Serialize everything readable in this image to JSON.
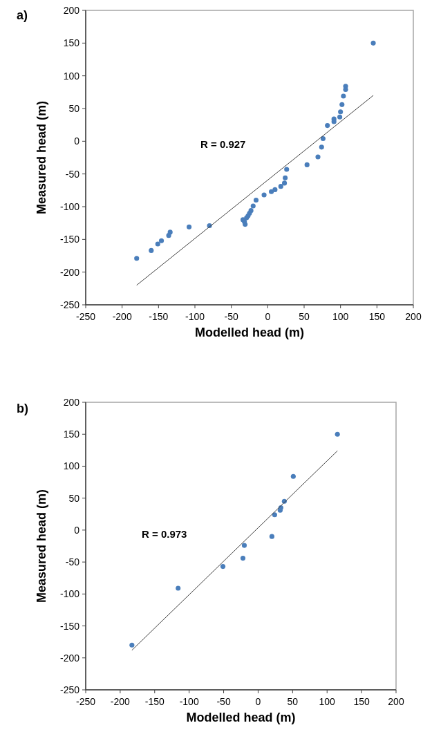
{
  "chart_data": [
    {
      "type": "scatter",
      "title": "a)",
      "xlabel": "Modelled head (m)",
      "ylabel": "Measured head (m)",
      "annotations": [
        "R = 0.927"
      ],
      "xlim": [
        -250,
        200
      ],
      "ylim": [
        -250,
        200
      ],
      "xticks": [
        -250,
        -200,
        -150,
        -100,
        -50,
        0,
        50,
        100,
        150,
        200
      ],
      "yticks": [
        -250,
        -200,
        -150,
        -100,
        -50,
        0,
        50,
        100,
        150,
        200
      ],
      "grid": false,
      "marker": "circle",
      "series": [
        {
          "color": "#4a7ebb",
          "x": [
            145,
            107,
            107,
            104,
            102,
            100,
            99,
            91,
            91,
            82,
            76,
            74,
            69,
            54,
            26,
            24,
            23,
            18,
            10,
            5,
            -5,
            -16,
            -20,
            -23,
            -25,
            -27,
            -29,
            -34,
            -32,
            -31,
            -80,
            -108,
            -134,
            -136,
            -146,
            -151,
            -160,
            -180
          ],
          "values": [
            150,
            84,
            79,
            69,
            56,
            45,
            37,
            34,
            30,
            24,
            4,
            -9,
            -24,
            -36,
            -43,
            -56,
            -64,
            -69,
            -74,
            -77,
            -82,
            -90,
            -99,
            -106,
            -110,
            -114,
            -117,
            -120,
            -123,
            -127,
            -129,
            -131,
            -139,
            -144,
            -152,
            -157,
            -167,
            -179
          ]
        },
        {
          "type": "line",
          "color": "#404040",
          "marker": "none",
          "x": [
            -180,
            145
          ],
          "values": [
            -220,
            70
          ]
        }
      ]
    },
    {
      "type": "scatter",
      "title": "b)",
      "xlabel": "Modelled head (m)",
      "ylabel": "Measured head (m)",
      "annotations": [
        "R = 0.973"
      ],
      "xlim": [
        -250,
        200
      ],
      "ylim": [
        -250,
        200
      ],
      "xticks": [
        -250,
        -200,
        -150,
        -100,
        -50,
        0,
        50,
        100,
        150,
        200
      ],
      "yticks": [
        -250,
        -200,
        -150,
        -100,
        -50,
        0,
        50,
        100,
        150,
        200
      ],
      "grid": false,
      "marker": "circle",
      "series": [
        {
          "color": "#4a7ebb",
          "x": [
            115,
            51,
            38,
            33,
            32,
            24,
            20,
            -20,
            -22,
            -51,
            -116,
            -183
          ],
          "values": [
            150,
            84,
            45,
            35,
            31,
            24,
            -10,
            -24,
            -44,
            -57,
            -91,
            -180
          ]
        },
        {
          "type": "line",
          "color": "#404040",
          "marker": "none",
          "x": [
            -183,
            115
          ],
          "values": [
            -188,
            124
          ]
        }
      ]
    }
  ]
}
